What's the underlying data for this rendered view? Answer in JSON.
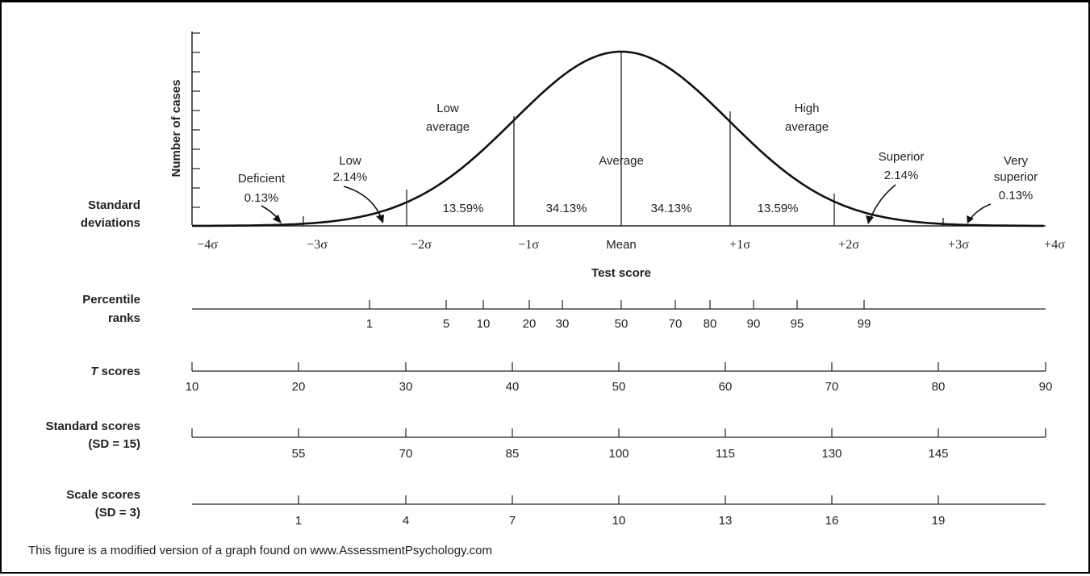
{
  "y_axis_label": "Number of cases",
  "x_axis_title": "Test score",
  "sd_row": {
    "title_line1": "Standard",
    "title_line2": "deviations",
    "labels": [
      "−4σ",
      "−3σ",
      "−2σ",
      "−1σ",
      "Mean",
      "+1σ",
      "+2σ",
      "+3σ",
      "+4σ"
    ]
  },
  "regions": [
    {
      "name": "Deficient",
      "percent": "0.13%"
    },
    {
      "name": "Low",
      "percent": "2.14%"
    },
    {
      "name_line1": "Low",
      "name_line2": "average",
      "percent": "13.59%"
    },
    {
      "name": "Average",
      "percent_left": "34.13%",
      "percent_right": "34.13%"
    },
    {
      "name_line1": "High",
      "name_line2": "average",
      "percent": "13.59%"
    },
    {
      "name": "Superior",
      "percent": "2.14%"
    },
    {
      "name_line1": "Very",
      "name_line2": "superior",
      "percent": "0.13%"
    }
  ],
  "scales": [
    {
      "title_line1": "Percentile",
      "title_line2": "ranks",
      "labels": [
        "1",
        "5",
        "10",
        "20",
        "30",
        "50",
        "70",
        "80",
        "90",
        "95",
        "99"
      ]
    },
    {
      "title_prefix": "T",
      "title_suffix": " scores",
      "labels": [
        "10",
        "20",
        "30",
        "40",
        "50",
        "60",
        "70",
        "80",
        "90"
      ]
    },
    {
      "title_line1": "Standard scores",
      "title_line2": "(SD = 15)",
      "labels": [
        "55",
        "70",
        "85",
        "100",
        "115",
        "130",
        "145"
      ]
    },
    {
      "title_line1": "Scale scores",
      "title_line2": "(SD = 3)",
      "labels": [
        "1",
        "4",
        "7",
        "10",
        "13",
        "16",
        "19"
      ]
    }
  ],
  "footer_note": "This figure is a modified version of a graph found on www.AssessmentPsychology.com"
}
